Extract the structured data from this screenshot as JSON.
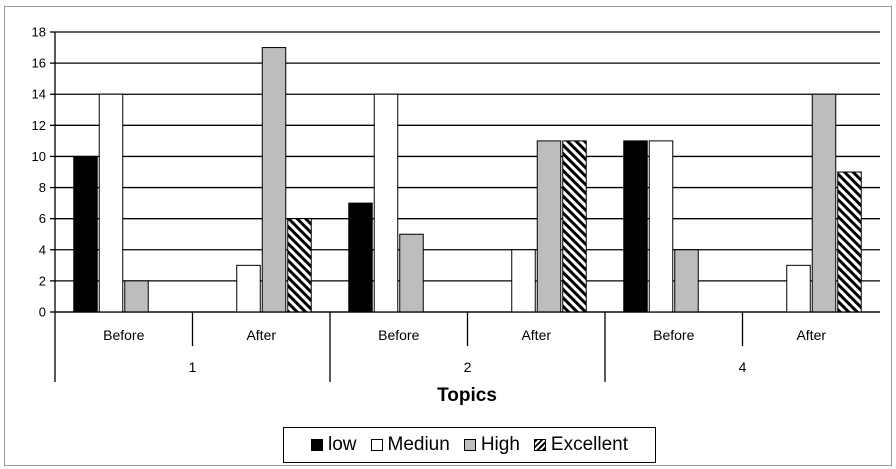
{
  "chart_data": {
    "type": "bar",
    "xlabel": "Topics",
    "ylim": [
      0,
      18
    ],
    "yticks": [
      0,
      2,
      4,
      6,
      8,
      10,
      12,
      14,
      16,
      18
    ],
    "grid": true,
    "legend_position": "bottom",
    "groups": [
      {
        "topic": "1",
        "phases": [
          "Before",
          "After"
        ]
      },
      {
        "topic": "2",
        "phases": [
          "Before",
          "After"
        ]
      },
      {
        "topic": "4",
        "phases": [
          "Before",
          "After"
        ]
      }
    ],
    "categories": [
      "1 Before",
      "1 After",
      "2 Before",
      "2 After",
      "4 Before",
      "4 After"
    ],
    "series": [
      {
        "name": "low",
        "color": "#000000",
        "values": [
          10,
          0,
          7,
          0,
          11,
          0
        ]
      },
      {
        "name": "Mediun",
        "color": "#ffffff",
        "values": [
          14,
          3,
          14,
          4,
          11,
          3
        ]
      },
      {
        "name": "High",
        "color": "#bdbdbd",
        "values": [
          2,
          17,
          5,
          11,
          4,
          14
        ]
      },
      {
        "name": "Excellent",
        "color": "hatched",
        "values": [
          0,
          6,
          0,
          11,
          0,
          9
        ]
      }
    ]
  }
}
